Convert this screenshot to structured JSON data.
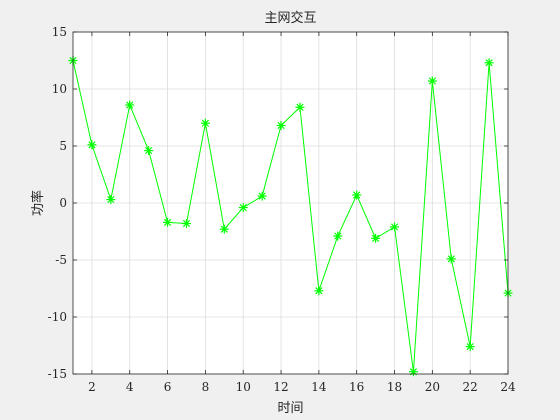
{
  "chart_data": {
    "type": "line",
    "title": "主网交互",
    "xlabel": "时间",
    "ylabel": "功率",
    "xlim": [
      1,
      24
    ],
    "ylim": [
      -15,
      15
    ],
    "xticks": [
      2,
      4,
      6,
      8,
      10,
      12,
      14,
      16,
      18,
      20,
      22,
      24
    ],
    "yticks": [
      -15,
      -10,
      -5,
      0,
      5,
      10,
      15
    ],
    "grid": true,
    "marker": "asterisk",
    "color": "#00ff00",
    "series": [
      {
        "x": [
          1,
          2,
          3,
          4,
          5,
          6,
          7,
          8,
          9,
          10,
          11,
          12,
          13,
          14,
          15,
          16,
          17,
          18,
          19,
          20,
          21,
          22,
          23,
          24
        ],
        "values": [
          12.5,
          5.1,
          0.3,
          8.6,
          4.6,
          -1.7,
          -1.8,
          7.0,
          -2.3,
          -0.4,
          0.6,
          6.8,
          8.4,
          -7.7,
          -2.9,
          0.7,
          -3.1,
          -2.1,
          -14.8,
          10.7,
          -4.9,
          -12.6,
          12.3,
          -7.9
        ]
      }
    ]
  }
}
